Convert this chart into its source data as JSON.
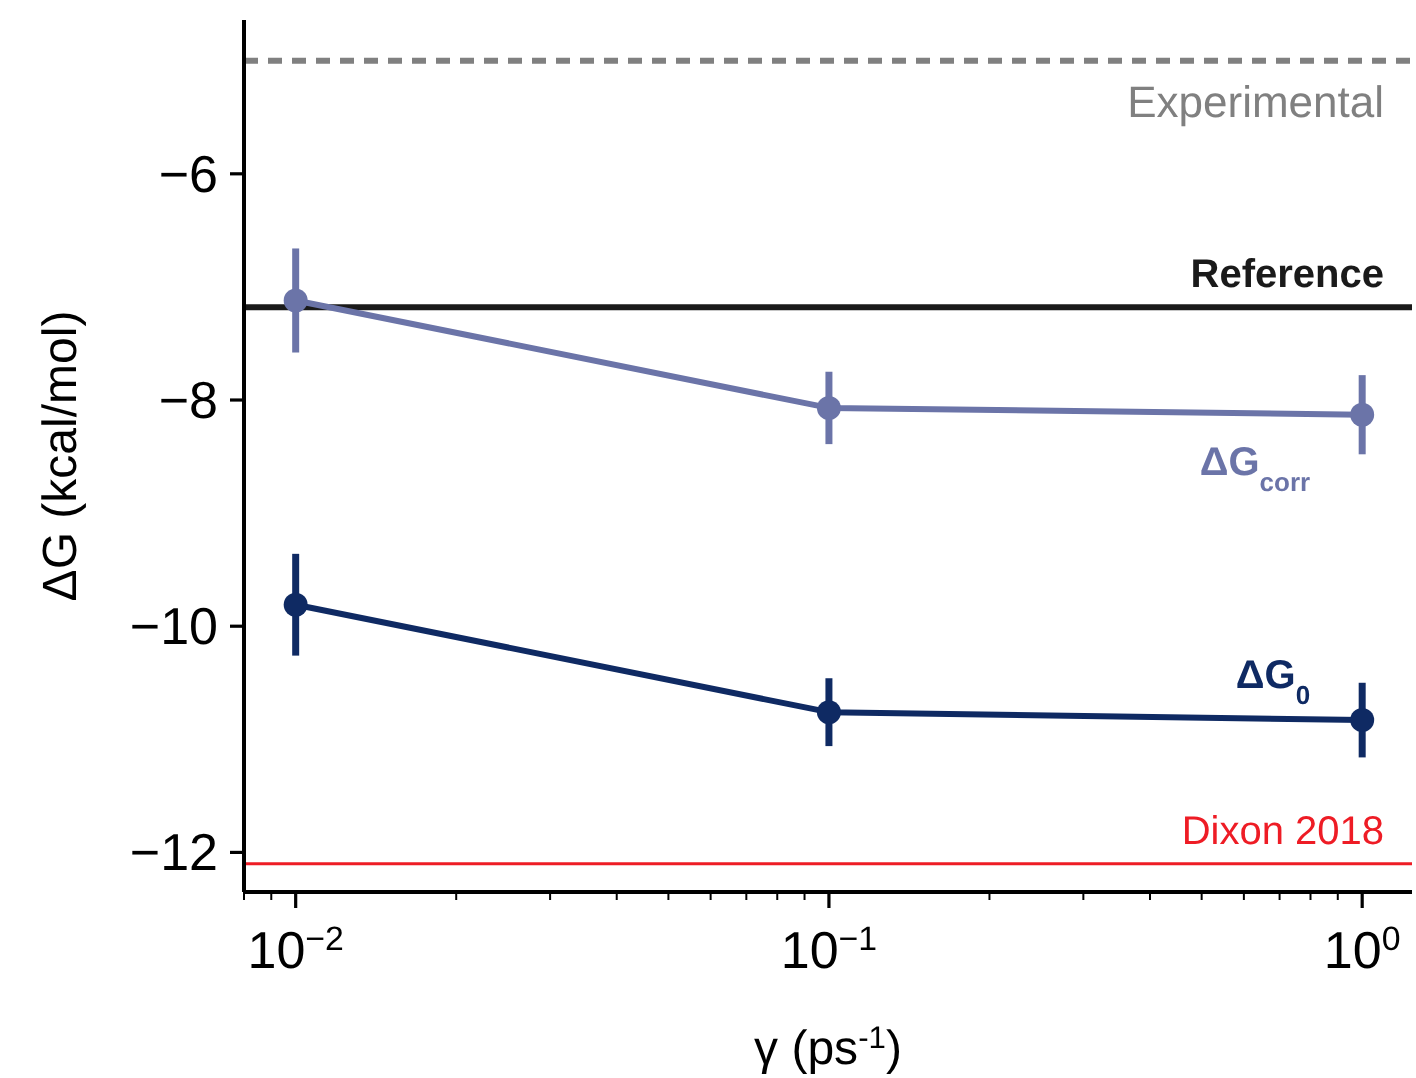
{
  "chart_data": {
    "type": "line",
    "xlabel": "γ (ps$^{-1}$)",
    "ylabel": "ΔG (kcal/mol)",
    "x": [
      0.01,
      0.1,
      1
    ],
    "series": [
      {
        "name": "ΔG$_{corr}$",
        "color": "#6b74a8",
        "values": [
          -7.12,
          -8.07,
          -8.13
        ],
        "errors": [
          0.46,
          0.32,
          0.35
        ]
      },
      {
        "name": "ΔG$_{0}$",
        "color": "#0f2a63",
        "values": [
          -9.81,
          -10.76,
          -10.83
        ],
        "errors": [
          0.45,
          0.3,
          0.33
        ]
      }
    ],
    "log": "x",
    "xlim": [
      0.008,
      1.24
    ],
    "ylim": [
      -12.35,
      -4.64
    ],
    "xticks": [
      {
        "value": 0.008,
        "label": null
      },
      {
        "value": 0.009,
        "label": null
      },
      {
        "value": 0.01,
        "label": "10$^{−2}$"
      },
      {
        "value": 0.02,
        "label": null
      },
      {
        "value": 0.03,
        "label": null
      },
      {
        "value": 0.04,
        "label": null
      },
      {
        "value": 0.05,
        "label": null
      },
      {
        "value": 0.06,
        "label": null
      },
      {
        "value": 0.07,
        "label": null
      },
      {
        "value": 0.08,
        "label": null
      },
      {
        "value": 0.09,
        "label": null
      },
      {
        "value": 0.1,
        "label": "10$^{−1}$"
      },
      {
        "value": 0.2,
        "label": null
      },
      {
        "value": 0.3,
        "label": null
      },
      {
        "value": 0.4,
        "label": null
      },
      {
        "value": 0.5,
        "label": null
      },
      {
        "value": 0.6,
        "label": null
      },
      {
        "value": 0.7,
        "label": null
      },
      {
        "value": 0.8,
        "label": null
      },
      {
        "value": 0.9,
        "label": null
      },
      {
        "value": 1,
        "label": "10$^{0}$"
      }
    ],
    "yticks": [
      {
        "value": -6,
        "label": "−6"
      },
      {
        "value": -8,
        "label": "−8"
      },
      {
        "value": -10,
        "label": "−10"
      },
      {
        "value": -12,
        "label": "−12"
      }
    ],
    "ref_lines": [
      {
        "axis": "y",
        "value": -5.0,
        "label": "Experimental",
        "color": "#808080",
        "line_style": "dashed"
      },
      {
        "axis": "y",
        "value": -7.18,
        "label": "Reference",
        "color": "#1a1a1a",
        "line_style": "solid"
      },
      {
        "axis": "y",
        "value": -12.1,
        "label": "Dixon 2018",
        "color": "#ee1c25",
        "line_style": "solid"
      }
    ],
    "grid": false,
    "legend": false,
    "marker": "circle",
    "line_style": "solid"
  }
}
